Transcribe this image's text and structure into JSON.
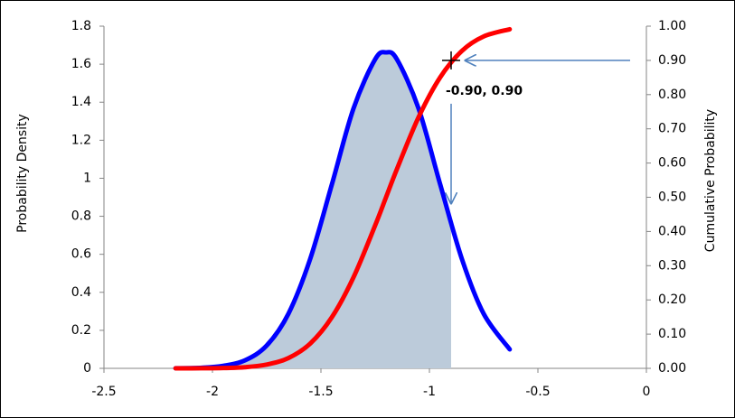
{
  "chart_data": {
    "type": "line",
    "x": [
      -2.17,
      -2.05,
      -1.95,
      -1.85,
      -1.75,
      -1.65,
      -1.55,
      -1.45,
      -1.35,
      -1.25,
      -1.2,
      -1.15,
      -1.05,
      -0.95,
      -0.85,
      -0.75,
      -0.63
    ],
    "series": [
      {
        "name": "Probability Density",
        "color": "#0000ff",
        "axis": "y",
        "values": [
          0.0005,
          0.003,
          0.013,
          0.042,
          0.12,
          0.287,
          0.574,
          0.966,
          1.367,
          1.626,
          1.662,
          1.626,
          1.367,
          0.966,
          0.574,
          0.287,
          0.1
        ]
      },
      {
        "name": "Cumulative Probability",
        "color": "#ff0000",
        "axis": "y2",
        "values": [
          3e-05,
          0.0002,
          0.0009,
          0.0034,
          0.011,
          0.03,
          0.072,
          0.149,
          0.266,
          0.418,
          0.5,
          0.582,
          0.734,
          0.851,
          0.928,
          0.97,
          0.991
        ]
      }
    ],
    "shade_color": "#bccbda",
    "ylabel": "Probability Density",
    "y2label": "Cumulative Probability",
    "xlim": [
      -2.5,
      0
    ],
    "xticks": [
      -2.5,
      -2,
      -1.5,
      -1,
      -0.5,
      0
    ],
    "ylim": [
      0,
      1.8
    ],
    "yticks": [
      0,
      0.2,
      0.4,
      0.6,
      0.8,
      1,
      1.2,
      1.4,
      1.6,
      1.8
    ],
    "y2lim": [
      0,
      1
    ],
    "y2ticks": [
      {
        "value": 0,
        "label": "0.00"
      },
      {
        "value": 0.1,
        "label": "0.10"
      },
      {
        "value": 0.2,
        "label": "0.20"
      },
      {
        "value": 0.3,
        "label": "0.30"
      },
      {
        "value": 0.4,
        "label": "0.40"
      },
      {
        "value": 0.5,
        "label": "0.50"
      },
      {
        "value": 0.6,
        "label": "0.60"
      },
      {
        "value": 0.7,
        "label": "0.70"
      },
      {
        "value": 0.8,
        "label": "0.80"
      },
      {
        "value": 0.9,
        "label": "0.90"
      },
      {
        "value": 1,
        "label": "1.00"
      }
    ],
    "annotation": {
      "x": -0.9,
      "y": 0.9,
      "label": "-0.90, 0.90"
    }
  }
}
